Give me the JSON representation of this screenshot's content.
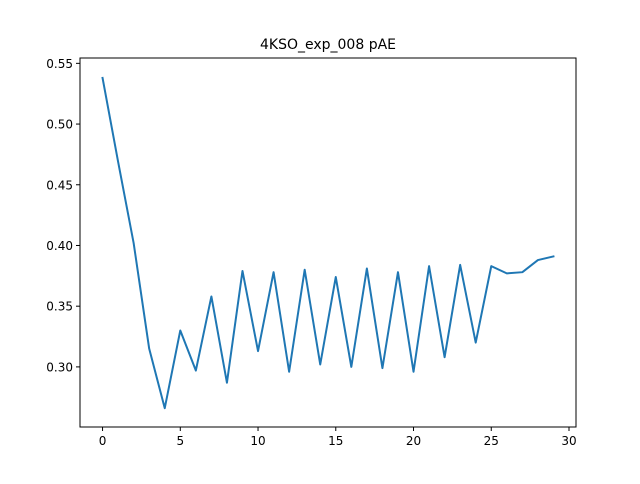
{
  "chart_data": {
    "type": "line",
    "title": "4KSO_exp_008 pAE",
    "xlabel": "",
    "ylabel": "",
    "xlim": [
      -1.45,
      30.45
    ],
    "ylim": [
      0.2505,
      0.5544
    ],
    "xticks": [
      0,
      5,
      10,
      15,
      20,
      25,
      30
    ],
    "yticks": [
      0.3,
      0.35,
      0.4,
      0.45,
      0.5,
      0.55
    ],
    "ytick_labels": [
      "0.30",
      "0.35",
      "0.40",
      "0.45",
      "0.50",
      "0.55"
    ],
    "grid": false,
    "legend": "none",
    "series": [
      {
        "color": "#1f77b4",
        "x": [
          0,
          1,
          2,
          3,
          4,
          5,
          6,
          7,
          8,
          9,
          10,
          11,
          12,
          13,
          14,
          15,
          16,
          17,
          18,
          19,
          20,
          21,
          22,
          23,
          24,
          25,
          26,
          27,
          28,
          29
        ],
        "values": [
          0.538,
          0.469,
          0.402,
          0.315,
          0.266,
          0.33,
          0.297,
          0.358,
          0.287,
          0.379,
          0.313,
          0.378,
          0.296,
          0.38,
          0.302,
          0.374,
          0.3,
          0.381,
          0.299,
          0.378,
          0.296,
          0.383,
          0.308,
          0.384,
          0.32,
          0.383,
          0.377,
          0.378,
          0.388,
          0.391
        ]
      }
    ]
  }
}
